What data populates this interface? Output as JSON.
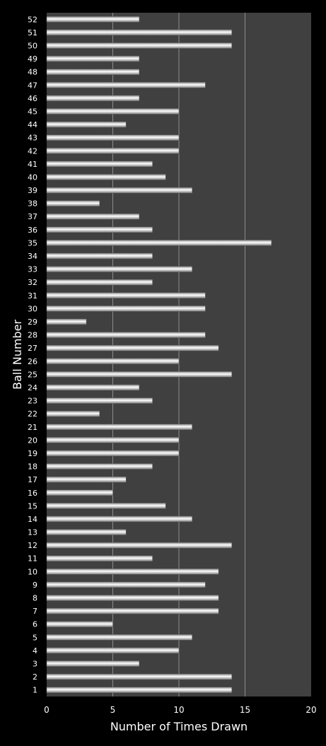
{
  "chart_data": {
    "type": "bar",
    "orientation": "horizontal",
    "categories": [
      "1",
      "2",
      "3",
      "4",
      "5",
      "6",
      "7",
      "8",
      "9",
      "10",
      "11",
      "12",
      "13",
      "14",
      "15",
      "16",
      "17",
      "18",
      "19",
      "20",
      "21",
      "22",
      "23",
      "24",
      "25",
      "26",
      "27",
      "28",
      "29",
      "30",
      "31",
      "32",
      "33",
      "34",
      "35",
      "36",
      "37",
      "38",
      "39",
      "40",
      "41",
      "42",
      "43",
      "44",
      "45",
      "46",
      "47",
      "48",
      "49",
      "50",
      "51",
      "52"
    ],
    "values": [
      14,
      14,
      7,
      10,
      11,
      5,
      13,
      13,
      12,
      13,
      8,
      14,
      6,
      11,
      9,
      5,
      6,
      8,
      10,
      10,
      11,
      4,
      8,
      7,
      14,
      10,
      13,
      12,
      3,
      12,
      12,
      8,
      11,
      8,
      17,
      8,
      7,
      4,
      11,
      9,
      8,
      10,
      10,
      6,
      10,
      7,
      12,
      7,
      7,
      14,
      14,
      7
    ],
    "xlabel": "Number of Times Drawn",
    "ylabel": "Ball Number",
    "xlim": [
      0,
      20
    ],
    "xticks": [
      "0",
      "5",
      "10",
      "15",
      "20"
    ],
    "grid": "vertical",
    "legend": "none",
    "colors": {
      "background": "#000000",
      "plot_area": "#404040",
      "gridline": "#8c8c8c",
      "bar_light": "#ffffff",
      "bar_dark": "#8a8a8a",
      "text": "#ffffff"
    }
  }
}
